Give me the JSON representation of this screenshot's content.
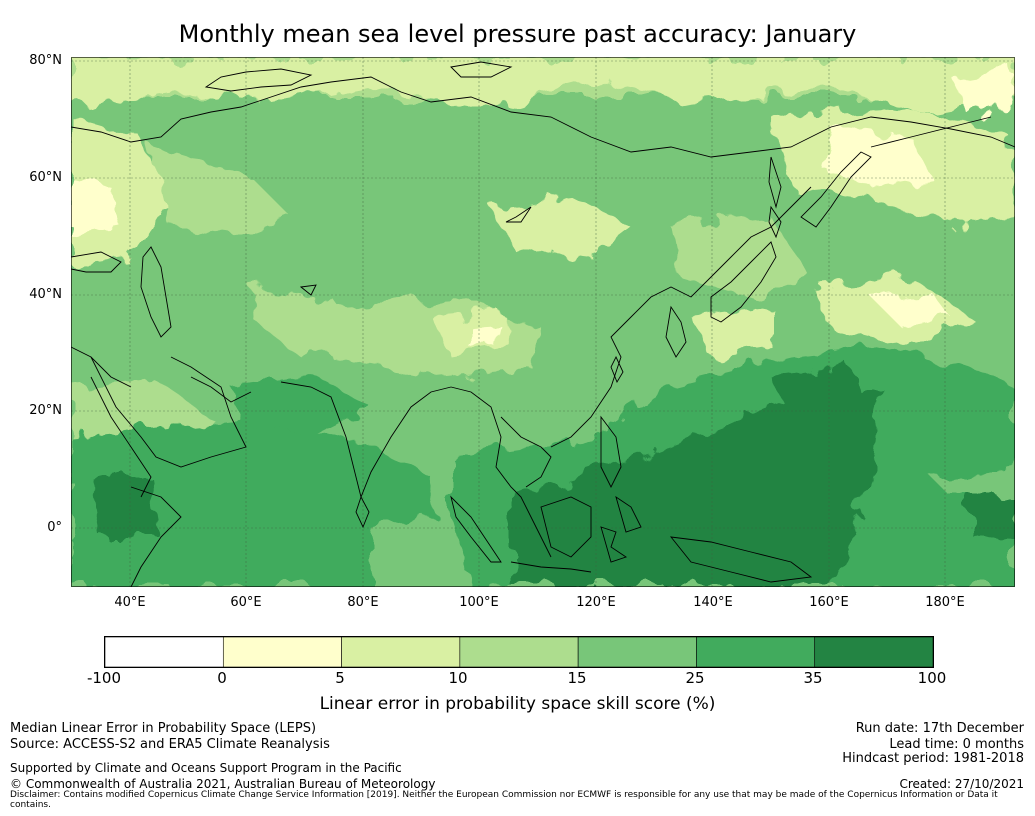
{
  "title": "Monthly mean sea level pressure past accuracy: January",
  "map": {
    "lat_labels": [
      "80°N",
      "60°N",
      "40°N",
      "20°N",
      "0°"
    ],
    "lon_labels": [
      "40°E",
      "60°E",
      "80°E",
      "100°E",
      "120°E",
      "140°E",
      "160°E",
      "180°E"
    ],
    "extent": {
      "lon_min": 30,
      "lon_max": 192,
      "lat_min": -10,
      "lat_max": 81
    }
  },
  "colorbar": {
    "ticks": [
      "-100",
      "0",
      "5",
      "10",
      "15",
      "25",
      "35",
      "100"
    ],
    "colors": [
      "#ffffff",
      "#ffffcc",
      "#d9f0a3",
      "#addd8e",
      "#78c679",
      "#41ab5d",
      "#238443"
    ],
    "label": "Linear error in probability space skill score (%)"
  },
  "footer": {
    "metric": "Median Linear Error in Probability Space (LEPS)",
    "source": "Source: ACCESS-S2 and ERA5 Climate Reanalysis",
    "support": "Supported by Climate and Oceans Support Program in the Pacific",
    "copyright": "© Commonwealth of Australia 2021, Australian Bureau of Meteorology",
    "disclaimer": "Disclaimer: Contains modified Copernicus Climate Change Service Information [2019]. Neither the European Commission nor ECMWF is responsible for any use that may be made of the Copernicus Information or Data it contains.",
    "run_date": "Run date: 17th December",
    "lead_time": "Lead time: 0 months",
    "hindcast": "Hindcast period: 1981-2018",
    "created": "Created: 27/10/2021"
  }
}
